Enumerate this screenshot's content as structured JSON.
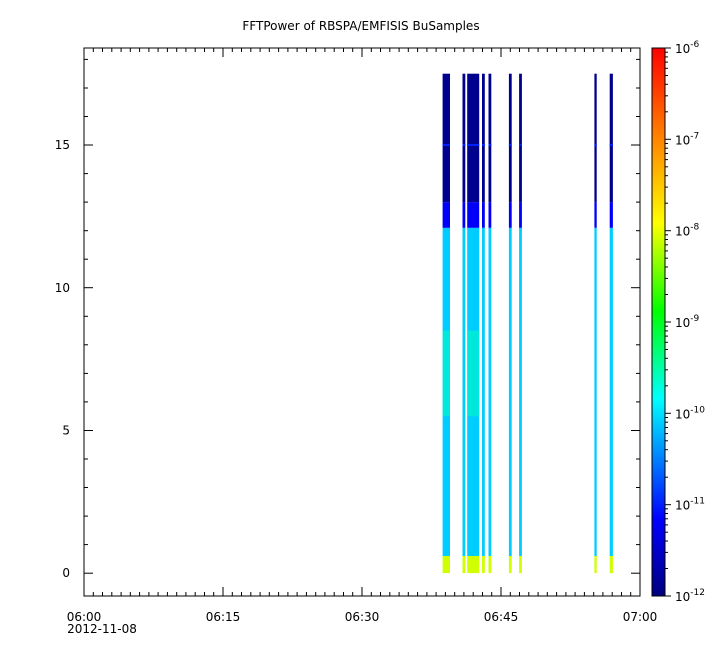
{
  "chart_data": {
    "type": "heatmap",
    "title": "FFTPower of RBSPA/EMFISIS  BuSamples",
    "xlabel": "",
    "ylabel": "",
    "x_range": [
      "06:00",
      "07:00"
    ],
    "x_ticks": [
      {
        "minute": 0,
        "label": "06:00",
        "sublabel": "2012-11-08"
      },
      {
        "minute": 15,
        "label": "06:15"
      },
      {
        "minute": 30,
        "label": "06:30"
      },
      {
        "minute": 45,
        "label": "06:45"
      },
      {
        "minute": 60,
        "label": "07:00"
      }
    ],
    "ylim": [
      -0.8,
      18.4
    ],
    "y_ticks": [
      0,
      5,
      10,
      15
    ],
    "colorbar": {
      "scale": "log",
      "range": [
        1e-12,
        1e-06
      ],
      "tick_exponents": [
        -12,
        -11,
        -10,
        -9,
        -8,
        -7,
        -6
      ],
      "colormap": [
        "#00007f",
        "#0000ff",
        "#00ffff",
        "#00ff00",
        "#ffff00",
        "#ff0000"
      ]
    },
    "data_columns": [
      {
        "t": 39.1,
        "w": 0.8
      },
      {
        "t": 41.0,
        "w": 0.3
      },
      {
        "t": 42.0,
        "w": 1.3
      },
      {
        "t": 43.1,
        "w": 0.3
      },
      {
        "t": 43.8,
        "w": 0.3
      },
      {
        "t": 46.0,
        "w": 0.3
      },
      {
        "t": 47.1,
        "w": 0.3
      },
      {
        "t": 55.2,
        "w": 0.25
      },
      {
        "t": 56.9,
        "w": 0.35
      }
    ],
    "spectrum": {
      "freq_max": 17.5,
      "levels": [
        {
          "f_from": 0.0,
          "f_to": 0.6,
          "power_exp": -8.1
        },
        {
          "f_from": 0.6,
          "f_to": 12.1,
          "power_exp": -10.1
        },
        {
          "f_from": 12.1,
          "f_to": 13.0,
          "power_exp": -11.2
        },
        {
          "f_from": 13.0,
          "f_to": 17.5,
          "power_exp": -11.9
        }
      ],
      "enhancement": {
        "f_from": 5.5,
        "f_to": 8.5,
        "power_exp": -9.6,
        "columns": [
          0,
          2
        ]
      },
      "line_at_15": {
        "f": 15.0,
        "power_exp": -11.0
      }
    }
  }
}
